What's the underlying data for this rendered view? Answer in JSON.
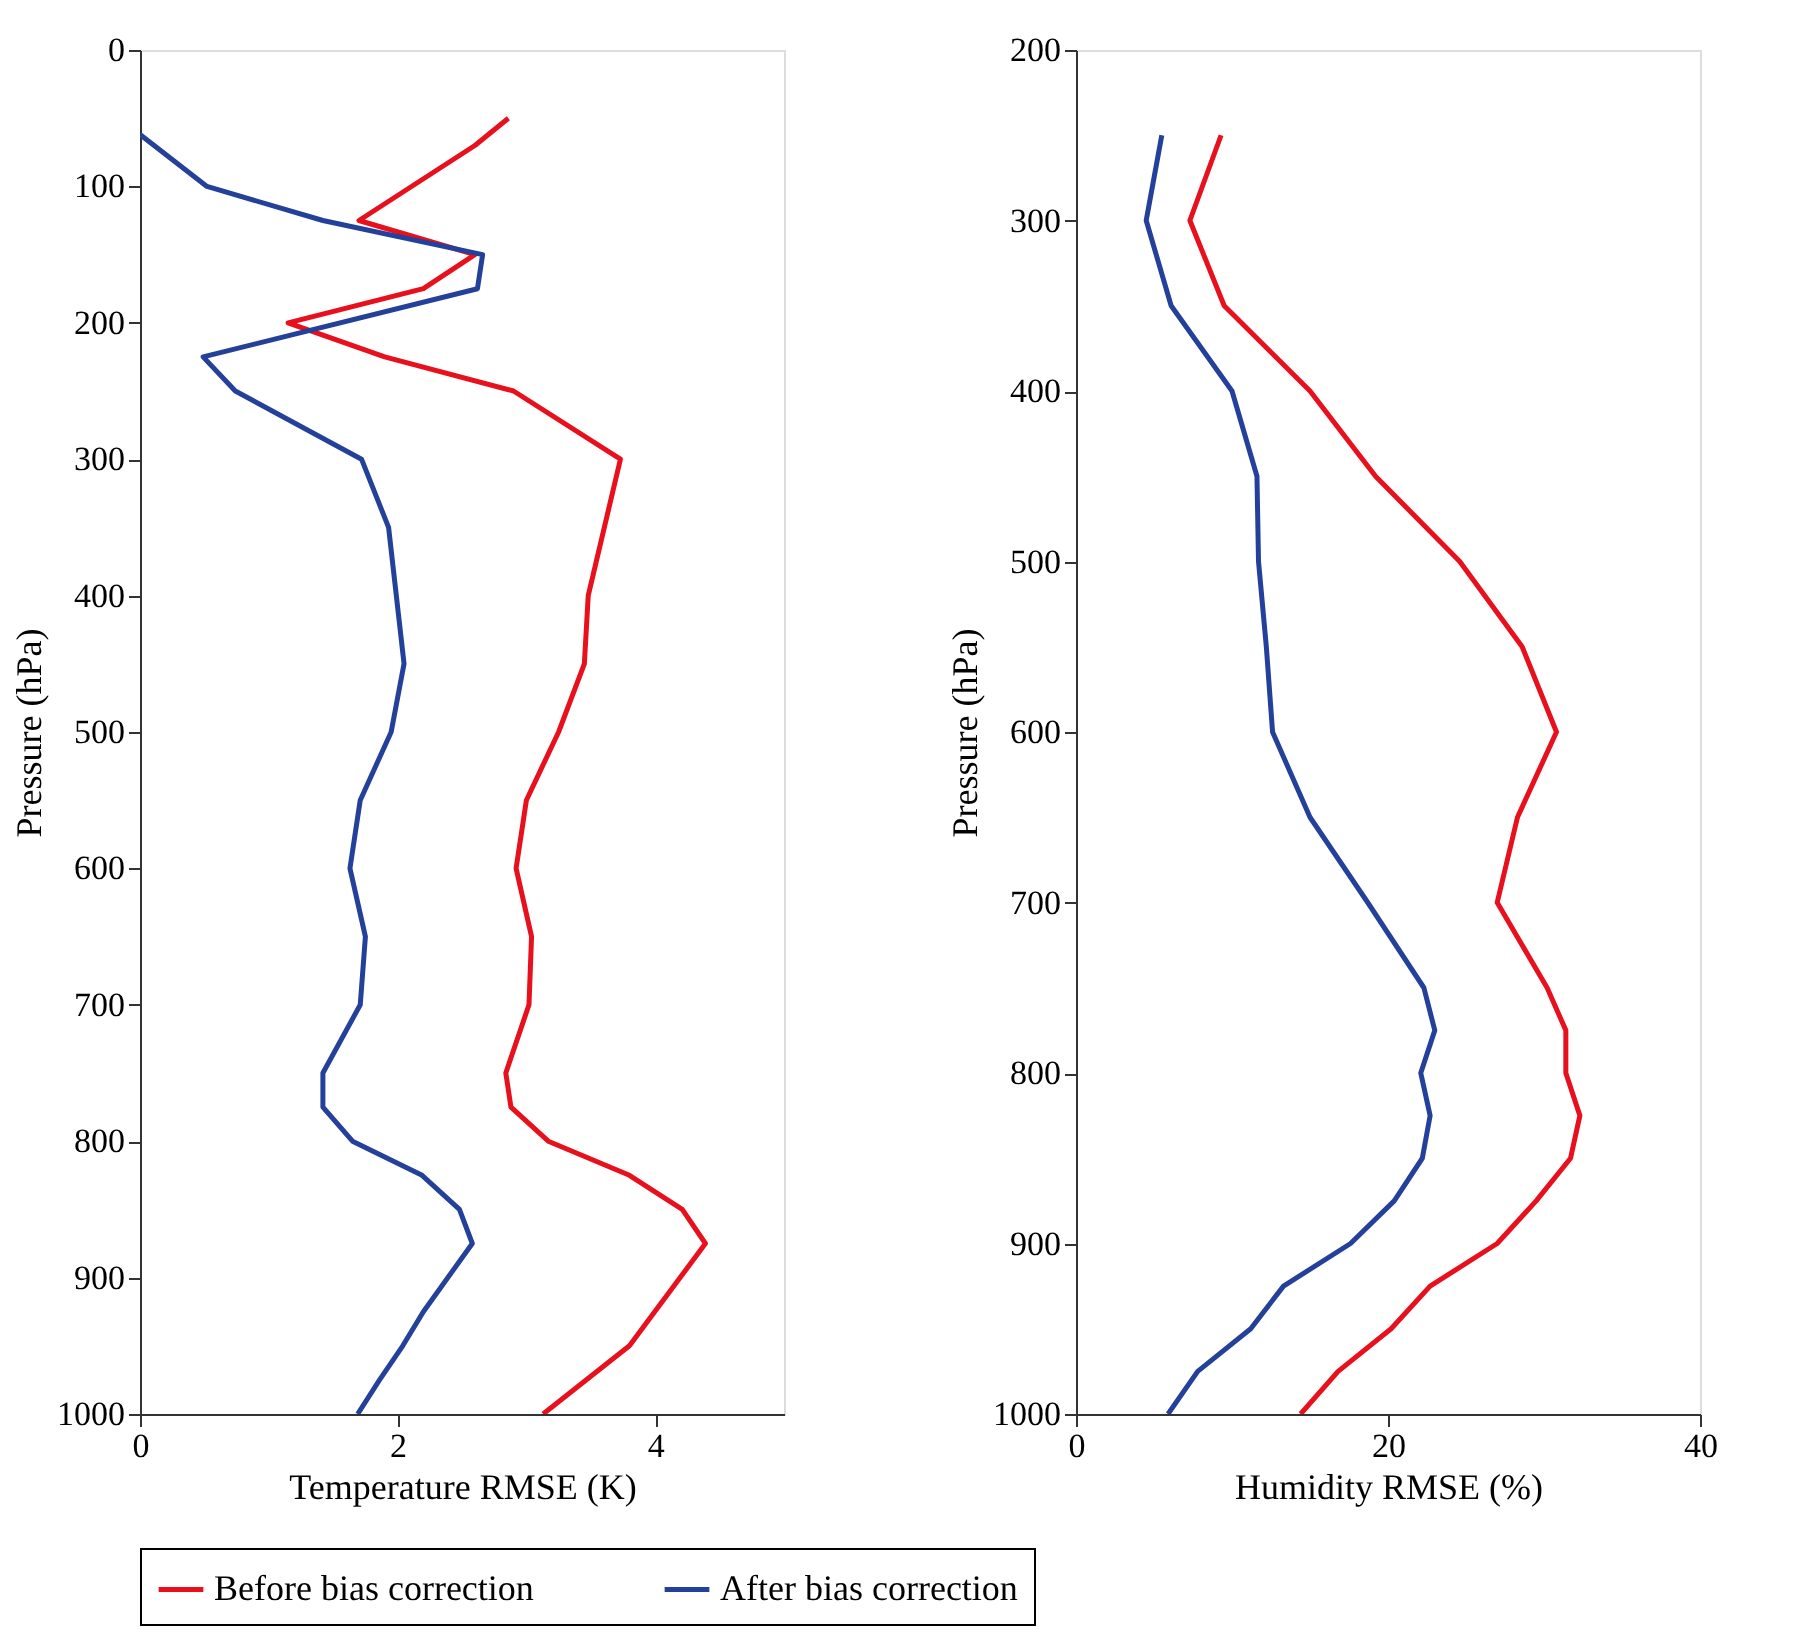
{
  "chart_data": [
    {
      "type": "line",
      "xlabel": "Temperature RMSE (K)",
      "ylabel": "Pressure (hPa)",
      "xlim": [
        0,
        5
      ],
      "xticks": [
        0,
        2,
        4
      ],
      "ylim": [
        1000,
        0
      ],
      "yticks": [
        0,
        100,
        200,
        300,
        400,
        500,
        600,
        700,
        800,
        900,
        1000
      ],
      "grid": false,
      "legend": "bottom",
      "line_style": "solid",
      "marker": "none",
      "series": [
        {
          "name": "Before bias correction",
          "color": "#e8101c",
          "x": [
            2.86,
            2.6,
            1.7,
            2.6,
            2.2,
            1.15,
            1.9,
            2.9,
            3.73,
            3.48,
            3.45,
            3.25,
            3.0,
            2.92,
            3.04,
            3.02,
            2.84,
            2.88,
            3.17,
            3.8,
            4.21,
            4.39,
            3.8,
            3.13
          ],
          "values": [
            50,
            70,
            125,
            150,
            175,
            200,
            225,
            250,
            300,
            400,
            450,
            500,
            550,
            600,
            650,
            700,
            750,
            775,
            800,
            825,
            850,
            875,
            950,
            1000
          ]
        },
        {
          "name": "After bias correction",
          "color": "#23409a",
          "x": [
            0,
            0.52,
            1.42,
            2.66,
            2.62,
            0.49,
            0.74,
            1.72,
            1.93,
            2.05,
            1.95,
            1.71,
            1.63,
            1.75,
            1.71,
            1.42,
            1.42,
            1.65,
            2.19,
            2.48,
            2.58,
            2.2,
            2.04,
            1.86,
            1.69
          ],
          "values": [
            62,
            100,
            125,
            150,
            175,
            225,
            250,
            300,
            350,
            450,
            500,
            550,
            600,
            650,
            700,
            750,
            775,
            800,
            825,
            850,
            875,
            925,
            950,
            975,
            1000
          ]
        }
      ]
    },
    {
      "type": "line",
      "xlabel": "Humidity RMSE (%)",
      "ylabel": "Pressure (hPa)",
      "xlim": [
        0,
        40
      ],
      "xticks": [
        0,
        20,
        40
      ],
      "ylim": [
        1000,
        200
      ],
      "yticks": [
        200,
        300,
        400,
        500,
        600,
        700,
        800,
        900,
        1000
      ],
      "grid": false,
      "legend": "bottom",
      "line_style": "solid",
      "marker": "none",
      "series": [
        {
          "name": "Before bias correction",
          "color": "#e8101c",
          "x": [
            9.3,
            7.3,
            9.5,
            15,
            19.2,
            24.6,
            28.6,
            30.8,
            28.3,
            27,
            30.2,
            31.4,
            31.4,
            32.3,
            31.7,
            29.5,
            27,
            22.7,
            20.2,
            16.8,
            14.4
          ],
          "values": [
            250,
            300,
            350,
            400,
            450,
            500,
            550,
            600,
            650,
            700,
            750,
            775,
            800,
            825,
            850,
            875,
            900,
            925,
            950,
            975,
            1000
          ]
        },
        {
          "name": "After bias correction",
          "color": "#23409a",
          "x": [
            5.5,
            4.5,
            6.1,
            10,
            11.6,
            11.7,
            12.2,
            12.6,
            15.0,
            18.7,
            22.3,
            23.0,
            22.1,
            22.7,
            22.2,
            20.4,
            17.6,
            13.3,
            11.2,
            7.8,
            5.9
          ],
          "values": [
            250,
            300,
            350,
            400,
            450,
            500,
            550,
            600,
            650,
            700,
            750,
            775,
            800,
            825,
            850,
            875,
            900,
            925,
            950,
            975,
            1000
          ]
        }
      ]
    }
  ]
}
